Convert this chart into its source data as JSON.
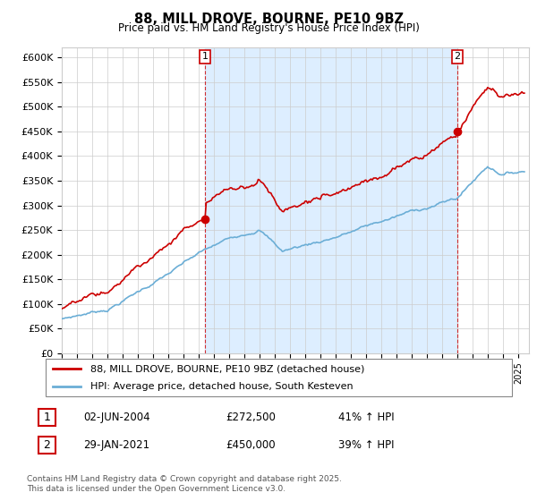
{
  "title": "88, MILL DROVE, BOURNE, PE10 9BZ",
  "subtitle": "Price paid vs. HM Land Registry's House Price Index (HPI)",
  "ylim": [
    0,
    620000
  ],
  "yticks": [
    0,
    50000,
    100000,
    150000,
    200000,
    250000,
    300000,
    350000,
    400000,
    450000,
    500000,
    550000,
    600000
  ],
  "ytick_labels": [
    "£0",
    "£50K",
    "£100K",
    "£150K",
    "£200K",
    "£250K",
    "£300K",
    "£350K",
    "£400K",
    "£450K",
    "£500K",
    "£550K",
    "£600K"
  ],
  "hpi_color": "#6baed6",
  "price_color": "#cc0000",
  "shade_color": "#ddeeff",
  "annotation1_year": 2004,
  "annotation1_month": 6,
  "annotation1_price": 272500,
  "annotation2_year": 2021,
  "annotation2_month": 1,
  "annotation2_price": 450000,
  "legend_line1": "88, MILL DROVE, BOURNE, PE10 9BZ (detached house)",
  "legend_line2": "HPI: Average price, detached house, South Kesteven",
  "footer_line1": "Contains HM Land Registry data © Crown copyright and database right 2025.",
  "footer_line2": "This data is licensed under the Open Government Licence v3.0.",
  "table_row1": [
    "1",
    "02-JUN-2004",
    "£272,500",
    "41% ↑ HPI"
  ],
  "table_row2": [
    "2",
    "29-JAN-2021",
    "£450,000",
    "39% ↑ HPI"
  ],
  "background_color": "#f0f4f8",
  "chart_bg": "#e8f0f8"
}
